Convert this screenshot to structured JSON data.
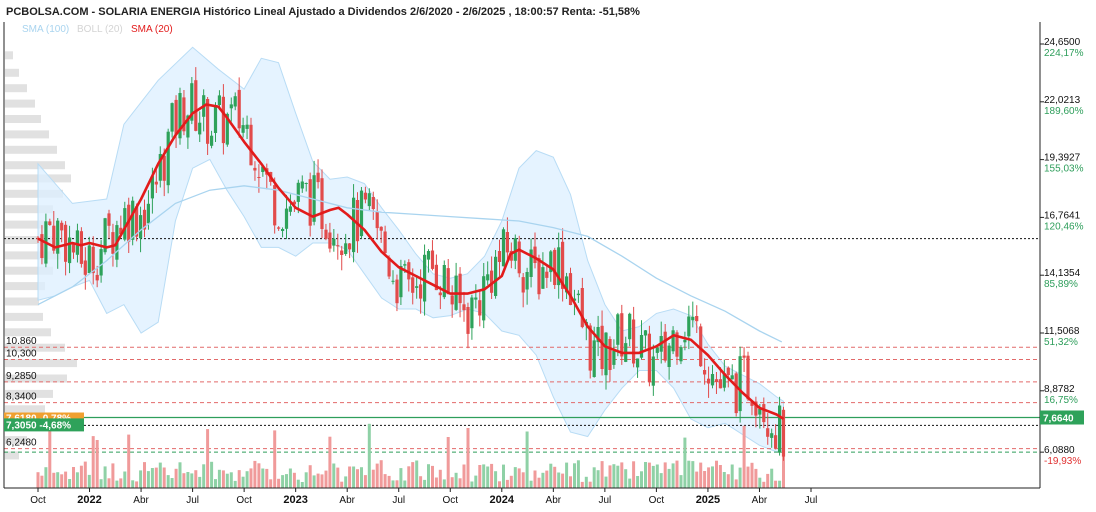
{
  "header": {
    "title": "PCBOLSA.COM - SOLARIA ENERGIA Histórico Lineal Ajustado a Dividendos 2/6/2020 - 2/6/2025 , 18:00:57 Renta: -51,58%"
  },
  "legend": [
    {
      "label": "SMA (100)",
      "color": "#a9d4ef"
    },
    {
      "label": "BOLL (20)",
      "color": "#d4d4d4"
    },
    {
      "label": "SMA (20)",
      "color": "#e21b1b"
    }
  ],
  "colors": {
    "up": "#2ea25a",
    "down": "#e24b4b",
    "sma20": "#e21b1b",
    "sma100": "#a9d4ef",
    "band": "#dcefff",
    "accent_green": "#2e9e5b",
    "accent_orange": "#f0a030"
  },
  "chart_data": {
    "type": "line",
    "title": "PCBOLSA.COM - SOLARIA ENERGIA Histórico Lineal Ajustado a Dividendos 2/6/2020 - 2/6/2025 , 18:00:57 Renta: -51,58%",
    "series_type": "candlestick",
    "ylim": [
      4.8,
      25.6
    ],
    "y_scale": "linear",
    "x_range": [
      "2021-09",
      "2025-07"
    ],
    "y_ticks": [
      {
        "value": 24.65,
        "label": "24,6500",
        "pct": "224,17%"
      },
      {
        "value": 22.0213,
        "label": "22,0213",
        "pct": "189,60%"
      },
      {
        "value": 19.3927,
        "label": "19,3927",
        "pct": "155,03%"
      },
      {
        "value": 16.7641,
        "label": "16,7641",
        "pct": "120,46%"
      },
      {
        "value": 14.1354,
        "label": "14,1354",
        "pct": "85,89%"
      },
      {
        "value": 11.5068,
        "label": "11,5068",
        "pct": "51,32%"
      },
      {
        "value": 8.8782,
        "label": "8,8782",
        "pct": "16,75%"
      },
      {
        "value": 6.088,
        "label": "6,0880",
        "pct": "-19,93%"
      }
    ],
    "x_ticks": [
      {
        "label": "Oct",
        "bold": false,
        "t": 0.0
      },
      {
        "label": "2022",
        "bold": true,
        "t": 3.0
      },
      {
        "label": "Abr",
        "bold": false,
        "t": 6.0
      },
      {
        "label": "Jul",
        "bold": false,
        "t": 9.0
      },
      {
        "label": "Oct",
        "bold": false,
        "t": 12.0
      },
      {
        "label": "2023",
        "bold": true,
        "t": 15.0
      },
      {
        "label": "Abr",
        "bold": false,
        "t": 18.0
      },
      {
        "label": "Jul",
        "bold": false,
        "t": 21.0
      },
      {
        "label": "Oct",
        "bold": false,
        "t": 24.0
      },
      {
        "label": "2024",
        "bold": true,
        "t": 27.0
      },
      {
        "label": "Abr",
        "bold": false,
        "t": 30.0
      },
      {
        "label": "Jul",
        "bold": false,
        "t": 33.0
      },
      {
        "label": "Oct",
        "bold": false,
        "t": 36.0
      },
      {
        "label": "2025",
        "bold": true,
        "t": 39.0
      },
      {
        "label": "Abr",
        "bold": false,
        "t": 42.0
      },
      {
        "label": "Jul",
        "bold": false,
        "t": 45.0
      }
    ],
    "levels": [
      {
        "value": 10.86,
        "label": "10.860"
      },
      {
        "value": 10.3,
        "label": "10,300"
      },
      {
        "value": 9.285,
        "label": "9,2850"
      },
      {
        "value": 8.34,
        "label": "8,3400"
      },
      {
        "value": 6.248,
        "label": "6,2480"
      }
    ],
    "reference_line": 15.8,
    "last_price": {
      "value": 7.664,
      "label": "7,6640"
    },
    "current_tag": {
      "value": 7.305,
      "label": "7,3050 -4,68%"
    },
    "partial_tag": {
      "value": 7.618,
      "label": "7,6180 -0,78%"
    },
    "series": [
      {
        "name": "SMA (20)",
        "values": [
          [
            0,
            15.8
          ],
          [
            1,
            15.4
          ],
          [
            1.5,
            15.5
          ],
          [
            2,
            15.6
          ],
          [
            2.5,
            15.5
          ],
          [
            3,
            15.6
          ],
          [
            4,
            15.4
          ],
          [
            4.5,
            15.5
          ],
          [
            5,
            16.2
          ],
          [
            6,
            17.6
          ],
          [
            7,
            19.2
          ],
          [
            8,
            20.5
          ],
          [
            9,
            21.5
          ],
          [
            9.8,
            21.9
          ],
          [
            10.5,
            21.8
          ],
          [
            11,
            21.3
          ],
          [
            12,
            20.2
          ],
          [
            13,
            19.2
          ],
          [
            14,
            18.1
          ],
          [
            15,
            17.2
          ],
          [
            16,
            16.8
          ],
          [
            17,
            17.1
          ],
          [
            17.5,
            17.2
          ],
          [
            18,
            16.9
          ],
          [
            19,
            16.2
          ],
          [
            20,
            15.2
          ],
          [
            21,
            14.5
          ],
          [
            22,
            14.1
          ],
          [
            23,
            13.7
          ],
          [
            24,
            13.3
          ],
          [
            25,
            13.3
          ],
          [
            26,
            13.5
          ],
          [
            27,
            14.1
          ],
          [
            27.5,
            15.1
          ],
          [
            28,
            15.3
          ],
          [
            29,
            14.9
          ],
          [
            30,
            14.4
          ],
          [
            31,
            13.2
          ],
          [
            32,
            11.8
          ],
          [
            33,
            10.9
          ],
          [
            34,
            10.6
          ],
          [
            35,
            10.6
          ],
          [
            36,
            10.9
          ],
          [
            37,
            11.4
          ],
          [
            38,
            11.2
          ],
          [
            39,
            10.5
          ],
          [
            40,
            9.6
          ],
          [
            41,
            8.8
          ],
          [
            42,
            8.1
          ],
          [
            43,
            7.8
          ],
          [
            43.4,
            7.6
          ]
        ]
      },
      {
        "name": "SMA (100)",
        "values": [
          [
            0,
            12.8
          ],
          [
            2,
            13.6
          ],
          [
            4,
            14.8
          ],
          [
            6,
            16.2
          ],
          [
            8,
            17.4
          ],
          [
            10,
            18.0
          ],
          [
            12,
            18.2
          ],
          [
            14,
            18.0
          ],
          [
            16,
            17.6
          ],
          [
            18,
            17.2
          ],
          [
            20,
            17.0
          ],
          [
            22,
            16.9
          ],
          [
            24,
            16.8
          ],
          [
            26,
            16.7
          ],
          [
            28,
            16.6
          ],
          [
            30,
            16.3
          ],
          [
            32,
            15.9
          ],
          [
            34,
            15.0
          ],
          [
            36,
            14.0
          ],
          [
            38,
            13.2
          ],
          [
            40,
            12.5
          ],
          [
            42,
            11.6
          ],
          [
            43.3,
            11.1
          ]
        ]
      }
    ],
    "bollinger": {
      "upper": [
        [
          0,
          19.2
        ],
        [
          2,
          17.4
        ],
        [
          4,
          17.6
        ],
        [
          5,
          21.0
        ],
        [
          7,
          23.0
        ],
        [
          9,
          24.5
        ],
        [
          10.5,
          23.5
        ],
        [
          12,
          22.6
        ],
        [
          13,
          24.0
        ],
        [
          14,
          23.8
        ],
        [
          15,
          21.5
        ],
        [
          16,
          19.3
        ],
        [
          17,
          18.5
        ],
        [
          18,
          18.6
        ],
        [
          19,
          18.3
        ],
        [
          20,
          17.2
        ],
        [
          21,
          16.2
        ],
        [
          22,
          15.1
        ],
        [
          23,
          14.2
        ],
        [
          24,
          14.0
        ],
        [
          25,
          14.2
        ],
        [
          26,
          15.0
        ],
        [
          27,
          16.6
        ],
        [
          28,
          19.0
        ],
        [
          29,
          19.8
        ],
        [
          30,
          19.5
        ],
        [
          31,
          17.8
        ],
        [
          32,
          14.8
        ],
        [
          33,
          12.8
        ],
        [
          34,
          11.6
        ],
        [
          35,
          11.8
        ],
        [
          36,
          12.4
        ],
        [
          37,
          12.6
        ],
        [
          38,
          12.3
        ],
        [
          39,
          11.0
        ],
        [
          40,
          10.0
        ],
        [
          41,
          9.6
        ],
        [
          42,
          9.2
        ],
        [
          43,
          8.6
        ],
        [
          43.4,
          8.4
        ]
      ],
      "lower": [
        [
          0,
          13.0
        ],
        [
          1,
          13.2
        ],
        [
          2,
          13.6
        ],
        [
          3,
          13.9
        ],
        [
          4,
          12.4
        ],
        [
          5,
          12.8
        ],
        [
          6,
          11.5
        ],
        [
          7,
          12.0
        ],
        [
          8,
          16.6
        ],
        [
          9,
          19.0
        ],
        [
          10,
          19.4
        ],
        [
          11,
          18.0
        ],
        [
          12,
          16.8
        ],
        [
          13,
          15.4
        ],
        [
          14,
          15.4
        ],
        [
          15,
          15.0
        ],
        [
          16,
          15.6
        ],
        [
          17,
          15.6
        ],
        [
          18,
          15.3
        ],
        [
          19,
          14.2
        ],
        [
          20,
          13.1
        ],
        [
          21,
          12.6
        ],
        [
          22,
          12.6
        ],
        [
          23,
          12.2
        ],
        [
          24,
          12.3
        ],
        [
          25,
          12.6
        ],
        [
          26,
          12.4
        ],
        [
          27,
          11.6
        ],
        [
          28,
          11.4
        ],
        [
          29,
          10.5
        ],
        [
          30,
          8.6
        ],
        [
          31,
          7.0
        ],
        [
          32,
          6.8
        ],
        [
          33,
          8.0
        ],
        [
          34,
          9.0
        ],
        [
          35,
          9.8
        ],
        [
          36,
          9.8
        ],
        [
          37,
          9.0
        ],
        [
          38,
          7.6
        ],
        [
          39,
          7.2
        ],
        [
          40,
          7.4
        ],
        [
          41,
          6.9
        ],
        [
          42,
          6.4
        ],
        [
          43,
          6.1
        ],
        [
          43.4,
          6.2
        ]
      ]
    }
  }
}
